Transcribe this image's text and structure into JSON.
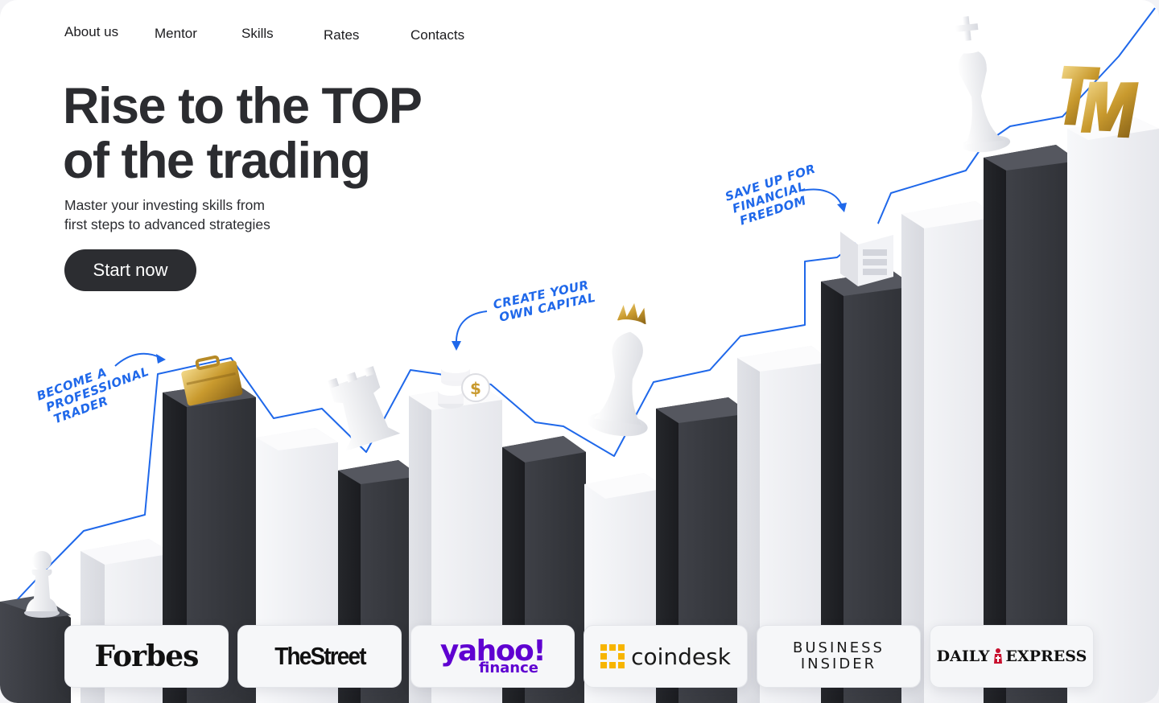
{
  "nav": {
    "items": [
      "About us",
      "Mentor",
      "Skills",
      "Rates",
      "Contacts"
    ]
  },
  "hero": {
    "title_line1": "Rise to the TOP",
    "title_line2": "of the trading",
    "subtitle_line1": "Master your investing skills from",
    "subtitle_line2": "first steps to advanced strategies",
    "cta_label": "Start now"
  },
  "annotations": {
    "note1": [
      "BECOME A",
      "PROFESSIONAL",
      "TRADER"
    ],
    "note2": [
      "CREATE YOUR",
      "OWN CAPITAL"
    ],
    "note3": [
      "SAVE UP FOR",
      "FINANCIAL",
      "FREEDOM"
    ]
  },
  "press": {
    "forbes": "Forbes",
    "thestreet": "TheStreet",
    "yahoo_top": "yahoo!",
    "yahoo_bottom": "finance",
    "coindesk": "coindesk",
    "bi_line1": "BUSINESS",
    "bi_line2": "INSIDER",
    "daily_left": "DAILY",
    "daily_right": "EXPRESS"
  },
  "icons": [
    "pawn-icon",
    "rook-icon",
    "queen-icon",
    "king-icon",
    "briefcase-icon",
    "coin-stack-icon",
    "safe-icon",
    "gold-letters-icon"
  ],
  "colors": {
    "dark_bar": "#3a3c42",
    "light_bar": "#e9eaee",
    "trend_line": "#1f68ea",
    "cta_bg": "#2c2d31"
  }
}
